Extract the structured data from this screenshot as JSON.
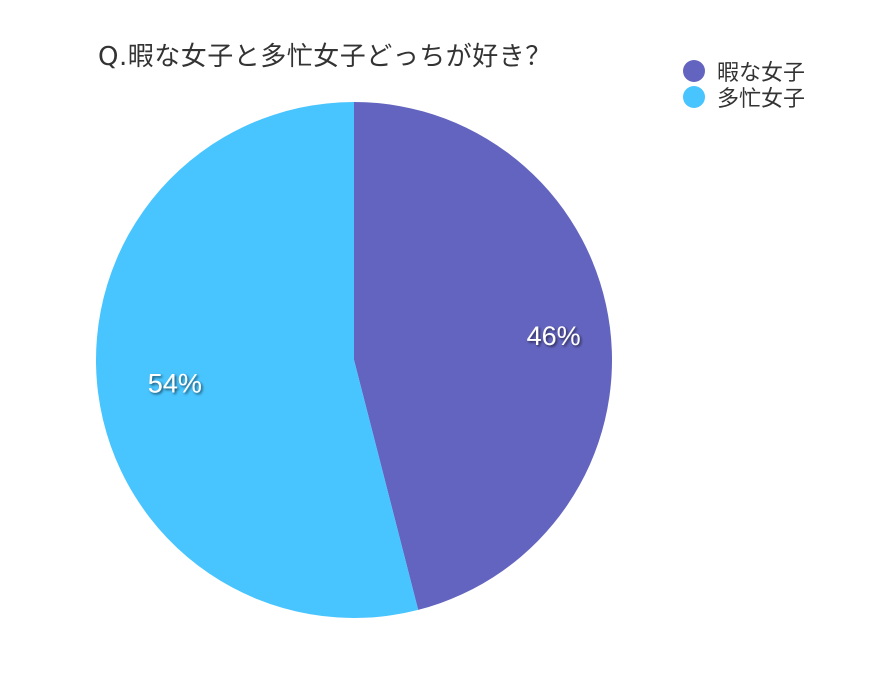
{
  "chart_data": {
    "type": "pie",
    "title": "Q.暇な女子と多忙女子どっちが好き？",
    "categories": [
      "暇な女子",
      "多忙女子"
    ],
    "values": [
      46,
      54
    ],
    "labels": [
      "46%",
      "54%"
    ],
    "colors": [
      "#6364BF",
      "#48C4FF"
    ],
    "legend": "top-right",
    "start": "top",
    "direction": "clockwise"
  }
}
